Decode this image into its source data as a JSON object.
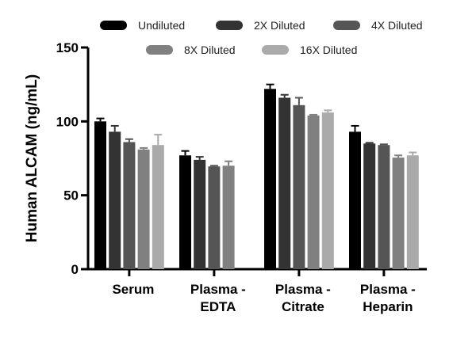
{
  "chart_data": {
    "type": "bar",
    "title": "",
    "xlabel": "",
    "ylabel": "Human ALCAM (ng/mL)",
    "ylim": [
      0,
      150
    ],
    "yticks": [
      0,
      50,
      100,
      150
    ],
    "categories": [
      [
        "Serum"
      ],
      [
        "Plasma -",
        "EDTA"
      ],
      [
        "Plasma -",
        "Citrate"
      ],
      [
        "Plasma -",
        "Heparin"
      ]
    ],
    "series": [
      {
        "name": "Undiluted",
        "color": "#000000",
        "values": [
          100,
          77,
          122,
          93
        ],
        "errors": [
          2,
          3,
          3,
          4
        ]
      },
      {
        "name": "2X Diluted",
        "color": "#333333",
        "values": [
          93,
          74,
          116,
          85
        ],
        "errors": [
          4,
          2,
          2,
          0.5
        ]
      },
      {
        "name": "4X Diluted",
        "color": "#555555",
        "values": [
          86,
          69.5,
          111,
          84
        ],
        "errors": [
          2,
          0.5,
          5,
          0.5
        ]
      },
      {
        "name": "8X Diluted",
        "color": "#808080",
        "values": [
          81,
          70,
          104,
          75.5
        ],
        "errors": [
          1,
          3,
          0.5,
          1.5
        ]
      },
      {
        "name": "16X Diluted",
        "color": "#aaaaaa",
        "values": [
          84,
          null,
          106,
          77
        ],
        "errors": [
          7,
          0,
          1.5,
          2
        ]
      }
    ],
    "legend_position": "top"
  }
}
